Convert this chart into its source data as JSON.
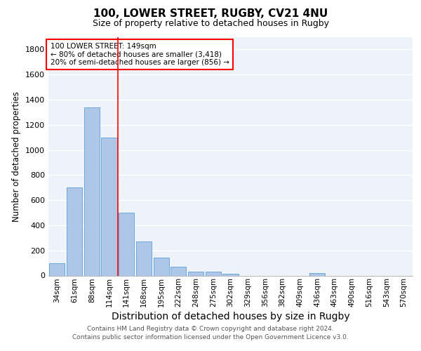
{
  "title": "100, LOWER STREET, RUGBY, CV21 4NU",
  "subtitle": "Size of property relative to detached houses in Rugby",
  "xlabel": "Distribution of detached houses by size in Rugby",
  "ylabel": "Number of detached properties",
  "footer_line1": "Contains HM Land Registry data © Crown copyright and database right 2024.",
  "footer_line2": "Contains public sector information licensed under the Open Government Licence v3.0.",
  "categories": [
    "34sqm",
    "61sqm",
    "88sqm",
    "114sqm",
    "141sqm",
    "168sqm",
    "195sqm",
    "222sqm",
    "248sqm",
    "275sqm",
    "302sqm",
    "329sqm",
    "356sqm",
    "382sqm",
    "409sqm",
    "436sqm",
    "463sqm",
    "490sqm",
    "516sqm",
    "543sqm",
    "570sqm"
  ],
  "values": [
    100,
    700,
    1340,
    1100,
    500,
    270,
    140,
    70,
    30,
    30,
    15,
    0,
    0,
    0,
    0,
    20,
    0,
    0,
    0,
    0,
    0
  ],
  "bar_color": "#aec6e8",
  "bar_edge_color": "#5a9fd4",
  "vline_x": 3.5,
  "vline_color": "red",
  "annotation_text": "100 LOWER STREET: 149sqm\n← 80% of detached houses are smaller (3,418)\n20% of semi-detached houses are larger (856) →",
  "annotation_box_color": "white",
  "annotation_box_edge_color": "red",
  "ylim": [
    0,
    1900
  ],
  "yticks": [
    0,
    200,
    400,
    600,
    800,
    1000,
    1200,
    1400,
    1600,
    1800
  ],
  "background_color": "#eef3fb",
  "title_fontsize": 11,
  "subtitle_fontsize": 9,
  "xlabel_fontsize": 10,
  "ylabel_fontsize": 8.5,
  "tick_fontsize": 7.5,
  "footer_fontsize": 6.5
}
